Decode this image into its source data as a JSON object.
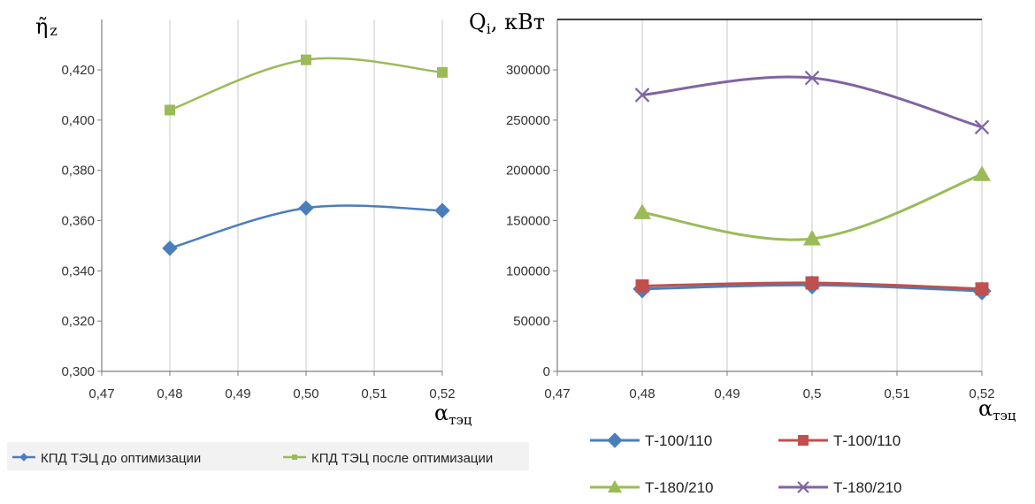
{
  "chart_data": [
    {
      "type": "line",
      "ylabel": "η̃z",
      "xlabel": "αтэц",
      "xlim": [
        0.47,
        0.52
      ],
      "ylim": [
        0.3,
        0.42
      ],
      "x_ticks": [
        "0,47",
        "0,48",
        "0,49",
        "0,50",
        "0,51",
        "0,52"
      ],
      "y_ticks": [
        "0,300",
        "0,320",
        "0,340",
        "0,360",
        "0,380",
        "0,400",
        "0,420"
      ],
      "grid": "vertical",
      "legend_position": "bottom",
      "series": [
        {
          "name": "КПД ТЭЦ до оптимизации",
          "color": "#4a7ebb",
          "marker": "diamond",
          "x": [
            0.48,
            0.5,
            0.52
          ],
          "values": [
            0.349,
            0.365,
            0.364
          ]
        },
        {
          "name": "КПД ТЭЦ после оптимизации",
          "color": "#9bbb59",
          "marker": "square",
          "x": [
            0.48,
            0.5,
            0.52
          ],
          "values": [
            0.404,
            0.424,
            0.419
          ]
        }
      ]
    },
    {
      "type": "line",
      "ylabel": "Qi, кВт",
      "xlabel": "αтэц",
      "xlim": [
        0.47,
        0.52
      ],
      "ylim": [
        0,
        300000
      ],
      "x_ticks": [
        "0,47",
        "0,48",
        "0,49",
        "0,5",
        "0,51",
        "0,52"
      ],
      "y_ticks": [
        "0",
        "50000",
        "100000",
        "150000",
        "200000",
        "250000",
        "300000"
      ],
      "grid": "vertical",
      "legend_position": "bottom",
      "series": [
        {
          "name": "Т-100/110",
          "color": "#4a7ebb",
          "marker": "diamond",
          "x": [
            0.48,
            0.5,
            0.52
          ],
          "values": [
            82000,
            86000,
            80000
          ]
        },
        {
          "name": "Т-100/110",
          "color": "#c0504d",
          "marker": "square",
          "x": [
            0.48,
            0.5,
            0.52
          ],
          "values": [
            85000,
            88000,
            82000
          ]
        },
        {
          "name": "Т-180/210",
          "color": "#9bbb59",
          "marker": "triangle",
          "x": [
            0.48,
            0.5,
            0.52
          ],
          "values": [
            158000,
            132000,
            196000
          ]
        },
        {
          "name": "Т-180/210",
          "color": "#8064a2",
          "marker": "x",
          "x": [
            0.48,
            0.5,
            0.52
          ],
          "values": [
            275000,
            292000,
            243000
          ]
        }
      ]
    }
  ]
}
